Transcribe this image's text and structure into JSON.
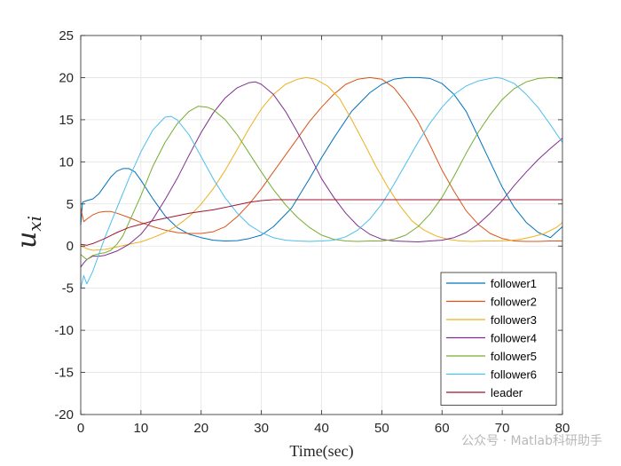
{
  "chart_data": {
    "type": "line",
    "xlabel": "Time(sec)",
    "ylabel": {
      "base": "u",
      "subscript": "xi"
    },
    "xlim": [
      0,
      80
    ],
    "ylim": [
      -20,
      25
    ],
    "xticks": [
      0,
      10,
      20,
      30,
      40,
      50,
      60,
      70,
      80
    ],
    "yticks": [
      -20,
      -15,
      -10,
      -5,
      0,
      5,
      10,
      15,
      20,
      25
    ],
    "grid": true,
    "legend_position": "bottom-right",
    "series": [
      {
        "name": "follower1",
        "color": "#0072BD",
        "points": [
          [
            0,
            2.5
          ],
          [
            0.3,
            5.2
          ],
          [
            1,
            5.4
          ],
          [
            2,
            5.6
          ],
          [
            3,
            6.2
          ],
          [
            4,
            7.2
          ],
          [
            5,
            8.2
          ],
          [
            6,
            8.9
          ],
          [
            7,
            9.2
          ],
          [
            8,
            9.2
          ],
          [
            9,
            8.8
          ],
          [
            10,
            7.8
          ],
          [
            12,
            5.6
          ],
          [
            14,
            3.6
          ],
          [
            16,
            2.2
          ],
          [
            18,
            1.4
          ],
          [
            20,
            1.0
          ],
          [
            22,
            0.7
          ],
          [
            24,
            0.6
          ],
          [
            26,
            0.65
          ],
          [
            28,
            0.9
          ],
          [
            30,
            1.3
          ],
          [
            32,
            2.3
          ],
          [
            35,
            4.5
          ],
          [
            38,
            8.0
          ],
          [
            40,
            10.5
          ],
          [
            42,
            12.8
          ],
          [
            45,
            16.0
          ],
          [
            48,
            18.2
          ],
          [
            50,
            19.2
          ],
          [
            52,
            19.8
          ],
          [
            54,
            20.0
          ],
          [
            56,
            20.0
          ],
          [
            58,
            19.9
          ],
          [
            60,
            19.3
          ],
          [
            62,
            18.0
          ],
          [
            64,
            16.0
          ],
          [
            66,
            13.0
          ],
          [
            68,
            10.0
          ],
          [
            70,
            7.0
          ],
          [
            72,
            4.6
          ],
          [
            74,
            2.8
          ],
          [
            76,
            1.6
          ],
          [
            78,
            1.0
          ],
          [
            80,
            2.3
          ]
        ]
      },
      {
        "name": "follower2",
        "color": "#D95319",
        "points": [
          [
            0,
            4.5
          ],
          [
            0.5,
            2.9
          ],
          [
            1,
            3.2
          ],
          [
            2,
            3.7
          ],
          [
            3,
            4.0
          ],
          [
            4,
            4.1
          ],
          [
            5,
            4.1
          ],
          [
            6,
            3.9
          ],
          [
            8,
            3.4
          ],
          [
            10,
            2.8
          ],
          [
            12,
            2.3
          ],
          [
            14,
            1.9
          ],
          [
            16,
            1.6
          ],
          [
            18,
            1.5
          ],
          [
            20,
            1.5
          ],
          [
            22,
            1.7
          ],
          [
            24,
            2.3
          ],
          [
            26,
            3.5
          ],
          [
            28,
            5.0
          ],
          [
            30,
            6.8
          ],
          [
            32,
            8.8
          ],
          [
            35,
            11.8
          ],
          [
            38,
            14.8
          ],
          [
            40,
            16.5
          ],
          [
            42,
            18.0
          ],
          [
            44,
            19.2
          ],
          [
            46,
            19.8
          ],
          [
            48,
            20.0
          ],
          [
            50,
            19.8
          ],
          [
            52,
            18.8
          ],
          [
            54,
            17.0
          ],
          [
            56,
            14.8
          ],
          [
            58,
            12.0
          ],
          [
            60,
            9.0
          ],
          [
            62,
            6.5
          ],
          [
            64,
            4.2
          ],
          [
            66,
            2.6
          ],
          [
            68,
            1.5
          ],
          [
            70,
            0.9
          ],
          [
            72,
            0.6
          ],
          [
            74,
            0.55
          ],
          [
            76,
            0.55
          ],
          [
            78,
            0.6
          ],
          [
            80,
            0.6
          ]
        ]
      },
      {
        "name": "follower3",
        "color": "#EDB120",
        "points": [
          [
            0,
            0.0
          ],
          [
            1,
            -0.3
          ],
          [
            2,
            -0.5
          ],
          [
            4,
            -0.4
          ],
          [
            6,
            -0.1
          ],
          [
            8,
            0.2
          ],
          [
            10,
            0.5
          ],
          [
            12,
            1.0
          ],
          [
            14,
            1.6
          ],
          [
            16,
            2.4
          ],
          [
            18,
            3.5
          ],
          [
            20,
            5.0
          ],
          [
            22,
            6.8
          ],
          [
            24,
            9.0
          ],
          [
            26,
            11.5
          ],
          [
            28,
            14.0
          ],
          [
            30,
            16.3
          ],
          [
            32,
            18.0
          ],
          [
            34,
            19.2
          ],
          [
            36,
            19.8
          ],
          [
            37.5,
            20.0
          ],
          [
            39,
            19.8
          ],
          [
            41,
            19.0
          ],
          [
            43,
            17.5
          ],
          [
            45,
            15.0
          ],
          [
            47,
            12.3
          ],
          [
            49,
            9.5
          ],
          [
            51,
            7.0
          ],
          [
            53,
            4.8
          ],
          [
            55,
            3.0
          ],
          [
            57,
            1.9
          ],
          [
            59,
            1.2
          ],
          [
            61,
            0.8
          ],
          [
            63,
            0.6
          ],
          [
            65,
            0.55
          ],
          [
            67,
            0.6
          ],
          [
            69,
            0.6
          ],
          [
            71,
            0.65
          ],
          [
            73,
            0.8
          ],
          [
            75,
            1.1
          ],
          [
            77,
            1.5
          ],
          [
            79,
            2.2
          ],
          [
            80,
            2.8
          ]
        ]
      },
      {
        "name": "follower4",
        "color": "#7E2F8E",
        "points": [
          [
            0,
            -2.5
          ],
          [
            0.5,
            -2.0
          ],
          [
            1,
            -1.6
          ],
          [
            2,
            -1.2
          ],
          [
            3,
            -1.2
          ],
          [
            4,
            -1.1
          ],
          [
            6,
            -0.6
          ],
          [
            8,
            0.2
          ],
          [
            10,
            1.4
          ],
          [
            12,
            3.2
          ],
          [
            14,
            5.5
          ],
          [
            16,
            8.0
          ],
          [
            18,
            10.8
          ],
          [
            20,
            13.5
          ],
          [
            22,
            15.8
          ],
          [
            24,
            17.6
          ],
          [
            26,
            18.8
          ],
          [
            28,
            19.4
          ],
          [
            29,
            19.5
          ],
          [
            30,
            19.2
          ],
          [
            32,
            18.0
          ],
          [
            34,
            16.0
          ],
          [
            36,
            13.5
          ],
          [
            38,
            10.8
          ],
          [
            40,
            8.0
          ],
          [
            42,
            5.8
          ],
          [
            44,
            3.9
          ],
          [
            46,
            2.4
          ],
          [
            48,
            1.4
          ],
          [
            50,
            0.8
          ],
          [
            52,
            0.6
          ],
          [
            54,
            0.55
          ],
          [
            56,
            0.5
          ],
          [
            58,
            0.6
          ],
          [
            60,
            0.7
          ],
          [
            62,
            1.0
          ],
          [
            64,
            1.6
          ],
          [
            66,
            2.6
          ],
          [
            68,
            3.9
          ],
          [
            70,
            5.4
          ],
          [
            72,
            7.2
          ],
          [
            74,
            8.8
          ],
          [
            76,
            10.3
          ],
          [
            78,
            11.6
          ],
          [
            80,
            12.8
          ]
        ]
      },
      {
        "name": "follower5",
        "color": "#77AC30",
        "points": [
          [
            0,
            -1.0
          ],
          [
            1,
            -1.6
          ],
          [
            2,
            -1.1
          ],
          [
            3,
            -0.9
          ],
          [
            4,
            -0.8
          ],
          [
            5,
            -0.5
          ],
          [
            6,
            0.2
          ],
          [
            7,
            1.2
          ],
          [
            8,
            2.8
          ],
          [
            10,
            6.0
          ],
          [
            12,
            9.5
          ],
          [
            14,
            12.3
          ],
          [
            16,
            14.5
          ],
          [
            18,
            16.0
          ],
          [
            19.5,
            16.6
          ],
          [
            21,
            16.5
          ],
          [
            22,
            16.2
          ],
          [
            24,
            15.0
          ],
          [
            26,
            13.2
          ],
          [
            28,
            11.0
          ],
          [
            30,
            8.8
          ],
          [
            32,
            6.7
          ],
          [
            34,
            4.9
          ],
          [
            36,
            3.4
          ],
          [
            38,
            2.2
          ],
          [
            40,
            1.3
          ],
          [
            42,
            0.8
          ],
          [
            44,
            0.6
          ],
          [
            46,
            0.55
          ],
          [
            48,
            0.6
          ],
          [
            50,
            0.6
          ],
          [
            52,
            0.8
          ],
          [
            54,
            1.3
          ],
          [
            56,
            2.3
          ],
          [
            58,
            3.8
          ],
          [
            60,
            5.8
          ],
          [
            62,
            8.3
          ],
          [
            64,
            11.0
          ],
          [
            66,
            13.5
          ],
          [
            68,
            15.6
          ],
          [
            70,
            17.4
          ],
          [
            72,
            18.7
          ],
          [
            74,
            19.5
          ],
          [
            76,
            19.9
          ],
          [
            78,
            20.0
          ],
          [
            80,
            19.9
          ]
        ]
      },
      {
        "name": "follower6",
        "color": "#4DBEEE",
        "points": [
          [
            0,
            -5.0
          ],
          [
            0.5,
            -3.5
          ],
          [
            1,
            -4.5
          ],
          [
            2,
            -3.0
          ],
          [
            3,
            -1.0
          ],
          [
            4,
            1.0
          ],
          [
            6,
            4.5
          ],
          [
            8,
            8.0
          ],
          [
            10,
            11.2
          ],
          [
            12,
            13.8
          ],
          [
            14,
            15.3
          ],
          [
            15,
            15.4
          ],
          [
            16,
            15.0
          ],
          [
            18,
            13.2
          ],
          [
            20,
            10.6
          ],
          [
            22,
            8.0
          ],
          [
            24,
            5.7
          ],
          [
            26,
            3.9
          ],
          [
            28,
            2.5
          ],
          [
            30,
            1.6
          ],
          [
            32,
            1.0
          ],
          [
            34,
            0.7
          ],
          [
            36,
            0.6
          ],
          [
            38,
            0.55
          ],
          [
            40,
            0.6
          ],
          [
            42,
            0.7
          ],
          [
            44,
            1.1
          ],
          [
            46,
            1.9
          ],
          [
            48,
            3.2
          ],
          [
            50,
            5.0
          ],
          [
            52,
            7.3
          ],
          [
            54,
            9.8
          ],
          [
            56,
            12.3
          ],
          [
            58,
            14.6
          ],
          [
            60,
            16.5
          ],
          [
            62,
            18.0
          ],
          [
            64,
            19.0
          ],
          [
            66,
            19.6
          ],
          [
            68,
            19.9
          ],
          [
            69,
            20.0
          ],
          [
            70,
            19.9
          ],
          [
            72,
            19.3
          ],
          [
            74,
            18.0
          ],
          [
            76,
            16.4
          ],
          [
            78,
            14.4
          ],
          [
            80,
            12.3
          ]
        ]
      },
      {
        "name": "leader",
        "color": "#A2142F",
        "points": [
          [
            0,
            0.2
          ],
          [
            1,
            0.1
          ],
          [
            2,
            0.3
          ],
          [
            4,
            0.9
          ],
          [
            6,
            1.6
          ],
          [
            8,
            2.2
          ],
          [
            10,
            2.6
          ],
          [
            12,
            3.0
          ],
          [
            14,
            3.3
          ],
          [
            16,
            3.6
          ],
          [
            18,
            3.9
          ],
          [
            20,
            4.1
          ],
          [
            22,
            4.3
          ],
          [
            24,
            4.6
          ],
          [
            26,
            4.9
          ],
          [
            28,
            5.2
          ],
          [
            30,
            5.4
          ],
          [
            32,
            5.5
          ],
          [
            35,
            5.5
          ],
          [
            80,
            5.5
          ]
        ]
      }
    ]
  },
  "watermark": "公众号 · Matlab科研助手"
}
